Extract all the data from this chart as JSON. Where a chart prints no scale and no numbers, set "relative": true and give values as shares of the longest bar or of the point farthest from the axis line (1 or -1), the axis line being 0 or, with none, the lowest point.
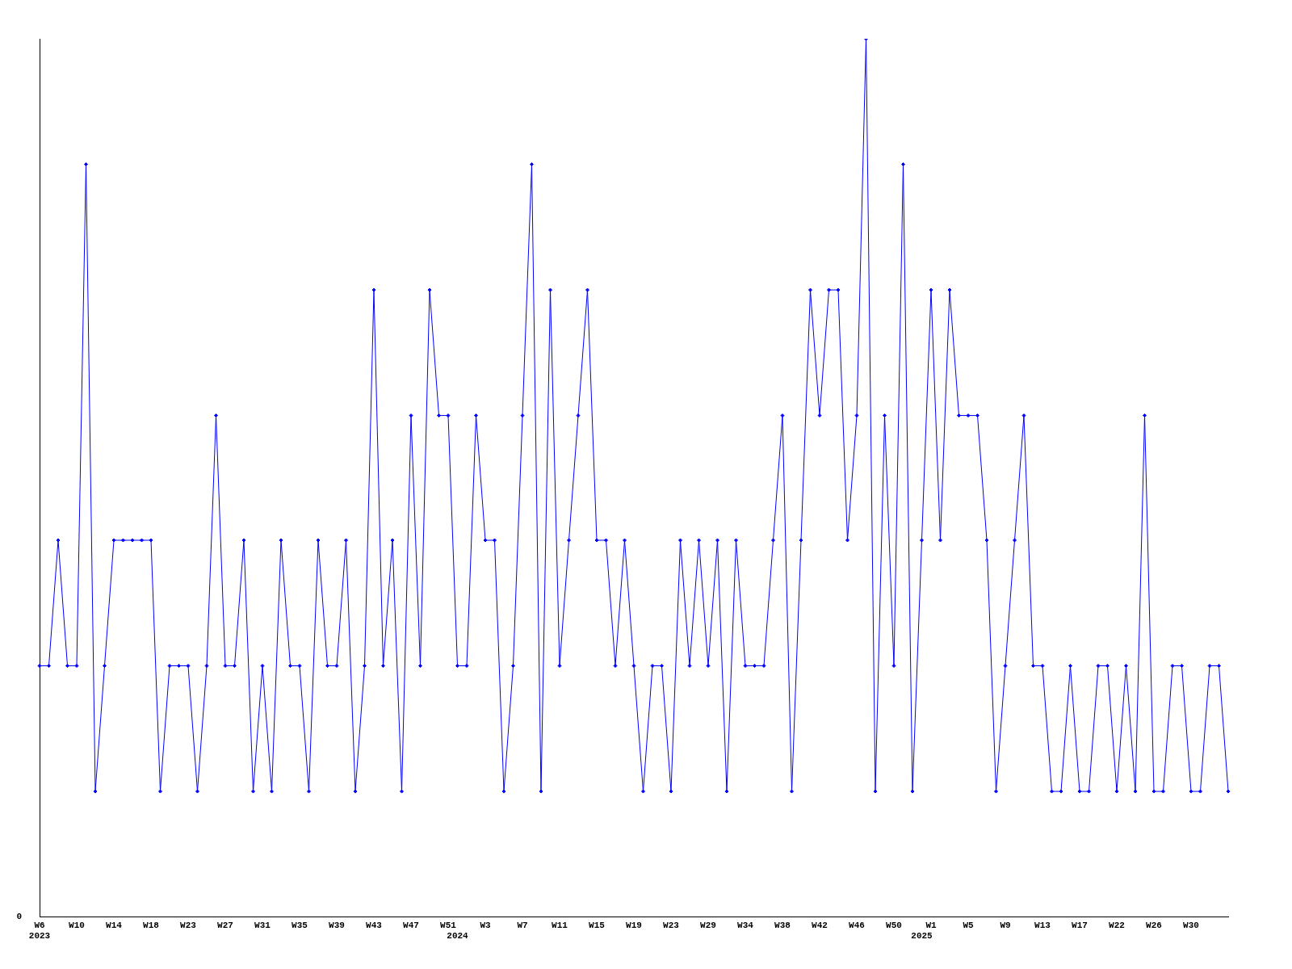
{
  "chart_data": {
    "type": "line",
    "relative": true,
    "color": "#0000ff",
    "marker": "diamond",
    "grid": false,
    "legend": false,
    "annotations": [
      "0"
    ],
    "categories": [
      "W6\n2023",
      null,
      null,
      null,
      "W10",
      null,
      null,
      null,
      "W14",
      null,
      null,
      null,
      "W18",
      null,
      null,
      null,
      "W23",
      null,
      null,
      null,
      "W27",
      null,
      null,
      null,
      "W31",
      null,
      null,
      null,
      "W35",
      null,
      null,
      null,
      "W39",
      null,
      null,
      null,
      "W43",
      null,
      null,
      null,
      "W47",
      null,
      null,
      null,
      "W51",
      "\n2024",
      null,
      null,
      "W3",
      null,
      null,
      null,
      "W7",
      null,
      null,
      null,
      "W11",
      null,
      null,
      null,
      "W15",
      null,
      null,
      null,
      "W19",
      null,
      null,
      null,
      "W23",
      null,
      null,
      null,
      "W29",
      null,
      null,
      null,
      "W34",
      null,
      null,
      null,
      "W38",
      null,
      null,
      null,
      "W42",
      null,
      null,
      null,
      "W46",
      null,
      null,
      null,
      "W50",
      null,
      null,
      "\n2025",
      "W1",
      null,
      null,
      null,
      "W5",
      null,
      null,
      null,
      "W9",
      null,
      null,
      null,
      "W13",
      null,
      null,
      null,
      "W17",
      null,
      null,
      null,
      "W22",
      null,
      null,
      null,
      "W26",
      null,
      null,
      null,
      "W30",
      null,
      null,
      null,
      null
    ],
    "values": [
      0.286,
      0.286,
      0.429,
      0.286,
      0.286,
      0.857,
      0.143,
      0.286,
      0.429,
      0.429,
      0.429,
      0.429,
      0.429,
      0.143,
      0.286,
      0.286,
      0.286,
      0.143,
      0.286,
      0.571,
      0.286,
      0.286,
      0.429,
      0.143,
      0.286,
      0.143,
      0.429,
      0.286,
      0.286,
      0.143,
      0.429,
      0.286,
      0.286,
      0.429,
      0.143,
      0.286,
      0.714,
      0.286,
      0.429,
      0.143,
      0.571,
      0.286,
      0.714,
      0.571,
      0.571,
      0.286,
      0.286,
      0.571,
      0.429,
      0.429,
      0.143,
      0.286,
      0.571,
      0.857,
      0.143,
      0.714,
      0.286,
      0.429,
      0.571,
      0.714,
      0.429,
      0.429,
      0.286,
      0.429,
      0.286,
      0.143,
      0.286,
      0.286,
      0.143,
      0.429,
      0.286,
      0.429,
      0.286,
      0.429,
      0.143,
      0.429,
      0.286,
      0.286,
      0.286,
      0.429,
      0.571,
      0.143,
      0.429,
      0.714,
      0.571,
      0.714,
      0.714,
      0.429,
      0.571,
      1,
      0.143,
      0.571,
      0.286,
      0.857,
      0.143,
      0.429,
      0.714,
      0.429,
      0.714,
      0.571,
      0.571,
      0.571,
      0.429,
      0.143,
      0.286,
      0.429,
      0.571,
      0.286,
      0.286,
      0.143,
      0.143,
      0.286,
      0.143,
      0.143,
      0.286,
      0.286,
      0.143,
      0.286,
      0.143,
      0.571,
      0.143,
      0.143,
      0.286,
      0.286,
      0.143,
      0.143,
      0.286,
      0.286,
      0.143
    ]
  }
}
